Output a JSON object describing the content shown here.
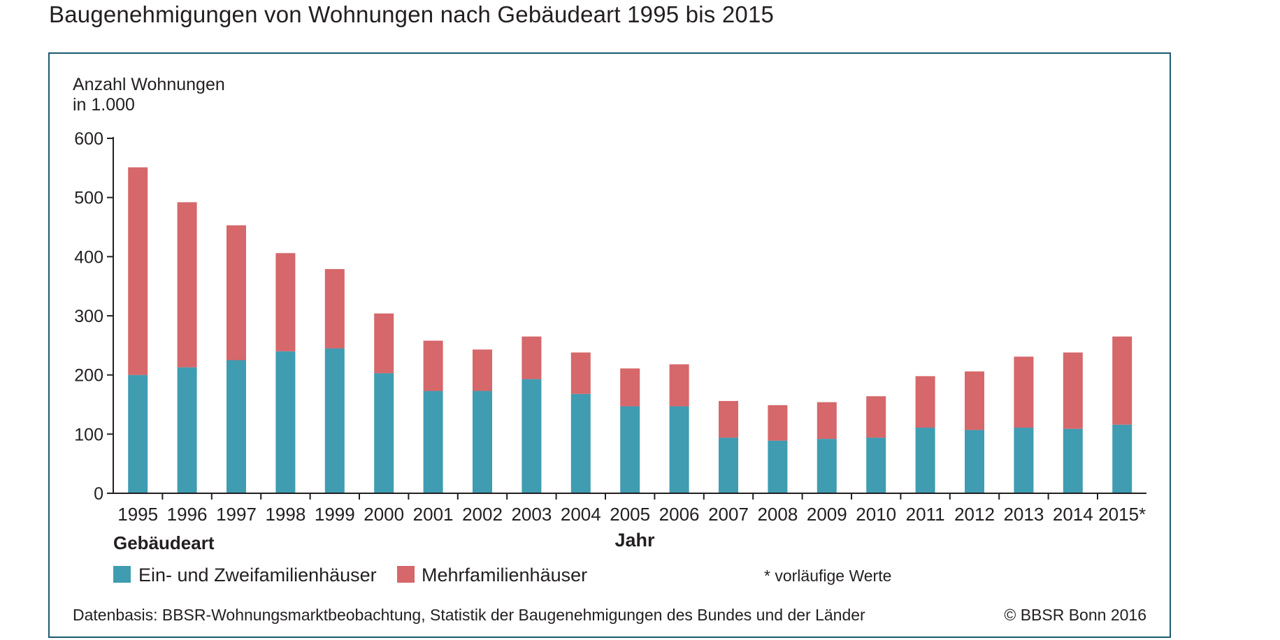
{
  "title": "Baugenehmigungen von Wohnungen nach Gebäudeart 1995 bis 2015",
  "chart_data": {
    "type": "bar",
    "stacked": true,
    "title": "Baugenehmigungen von Wohnungen nach Gebäudeart 1995 bis 2015",
    "ylabel_line1": "Anzahl Wohnungen",
    "ylabel_line2": "in 1.000",
    "xlabel": "Jahr",
    "ylim": [
      0,
      600
    ],
    "yticks": [
      0,
      100,
      200,
      300,
      400,
      500,
      600
    ],
    "categories": [
      "1995",
      "1996",
      "1997",
      "1998",
      "1999",
      "2000",
      "2001",
      "2002",
      "2003",
      "2004",
      "2005",
      "2006",
      "2007",
      "2008",
      "2009",
      "2010",
      "2011",
      "2012",
      "2013",
      "2014",
      "2015*"
    ],
    "series": [
      {
        "name": "Ein- und Zweifamilienhäuser",
        "color": "#3f9cb1",
        "values": [
          200,
          213,
          225,
          240,
          245,
          203,
          173,
          173,
          193,
          168,
          147,
          147,
          94,
          89,
          92,
          94,
          111,
          107,
          111,
          109,
          116
        ]
      },
      {
        "name": "Mehrfamilienhäuser",
        "color": "#d6676a",
        "values": [
          351,
          279,
          228,
          166,
          134,
          101,
          85,
          70,
          72,
          70,
          64,
          71,
          62,
          60,
          62,
          70,
          87,
          99,
          120,
          129,
          149
        ]
      }
    ],
    "legend_title": "Gebäudeart",
    "legend_position": "bottom-left",
    "footnote": "* vorläufige Werte",
    "source": "Datenbasis: BBSR-Wohnungsmarktbeobachtung, Statistik der Baugenehmigungen des Bundes und der Länder",
    "copyright": "© BBSR Bonn 2016",
    "grid": false
  }
}
